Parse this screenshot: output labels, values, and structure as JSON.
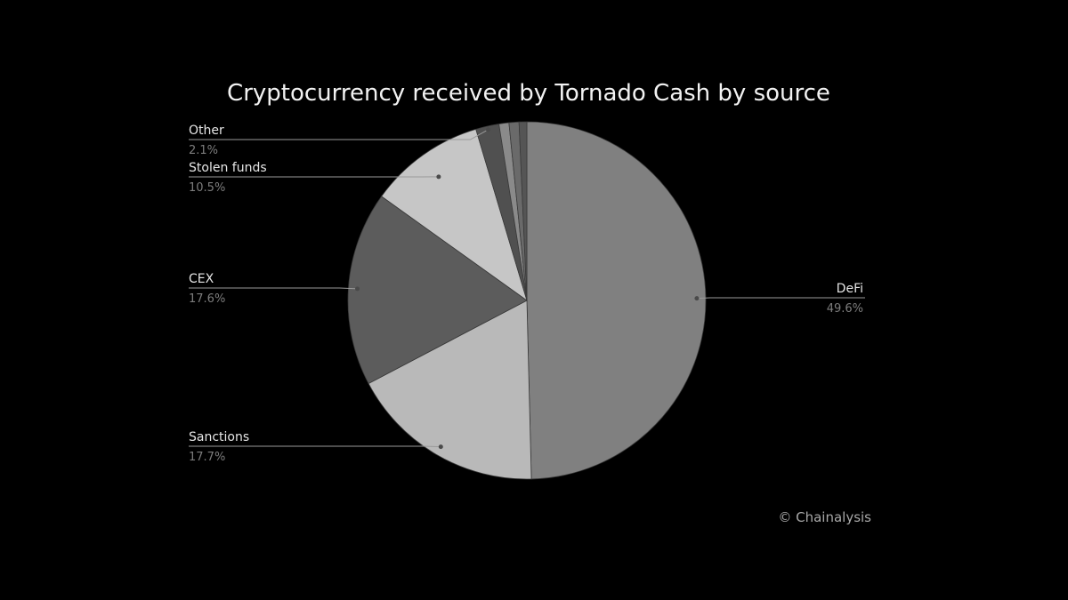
{
  "chart_data": {
    "type": "pie",
    "title": "Cryptocurrency received by Tornado Cash by source",
    "slices": [
      {
        "name": "DeFi",
        "value": 49.6,
        "label": "49.6%",
        "color": "#808080"
      },
      {
        "name": "Sanctions",
        "value": 17.7,
        "label": "17.7%",
        "color": "#b9b9b9"
      },
      {
        "name": "CEX",
        "value": 17.6,
        "label": "17.6%",
        "color": "#5c5c5c"
      },
      {
        "name": "Stolen funds",
        "value": 10.5,
        "label": "10.5%",
        "color": "#c6c6c6"
      },
      {
        "name": "Other",
        "value": 2.1,
        "label": "2.1%",
        "color": "#505050"
      },
      {
        "name": "",
        "value": 0.9,
        "label": "",
        "color": "#8a8a8a"
      },
      {
        "name": "",
        "value": 0.9,
        "label": "",
        "color": "#6a6a6a"
      },
      {
        "name": "",
        "value": 0.7,
        "label": "",
        "color": "#555555"
      }
    ],
    "legend": "none"
  },
  "credit": "© Chainalysis"
}
